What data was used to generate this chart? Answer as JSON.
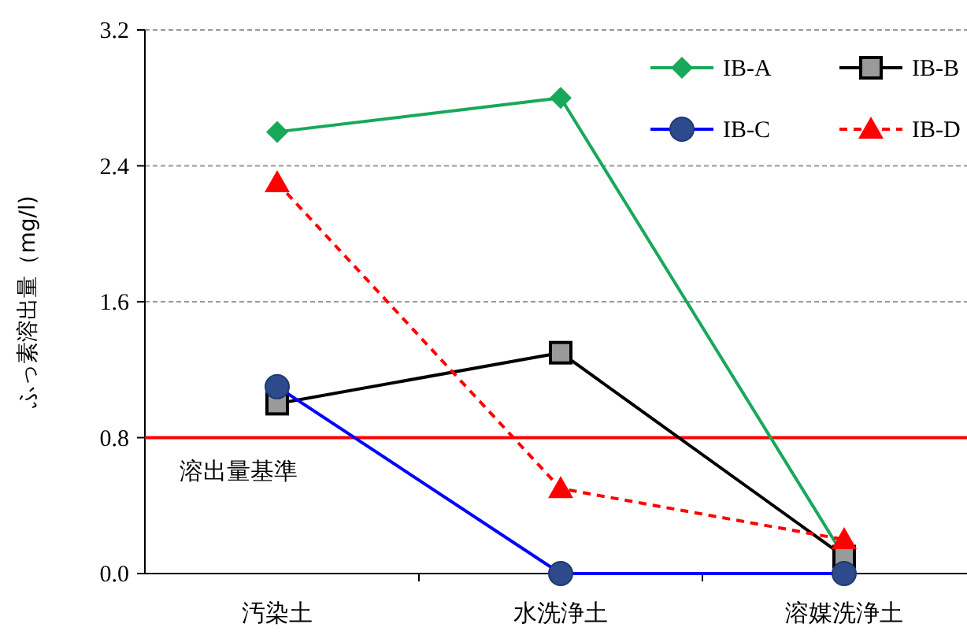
{
  "chart_data": {
    "type": "line",
    "ylabel": "ふっ素溶出量（mg/l)",
    "categories": [
      "汚染土",
      "水洗浄土",
      "溶媒洗浄土"
    ],
    "ylim": [
      0,
      3.2
    ],
    "yticks": [
      {
        "value": 0,
        "label": "0.0"
      },
      {
        "value": 0.8,
        "label": "0.8"
      },
      {
        "value": 1.6,
        "label": "1.6"
      },
      {
        "value": 2.4,
        "label": "2.4"
      },
      {
        "value": 3.2,
        "label": "3.2"
      }
    ],
    "grid": "y",
    "legend": "top right",
    "series": [
      {
        "name": "IB-A",
        "color": "#19a85a",
        "marker": "diamond",
        "line_style": "solid",
        "values": [
          2.6,
          2.8,
          0.1
        ]
      },
      {
        "name": "IB-B",
        "color": "#000000",
        "marker": "square",
        "line_style": "solid",
        "values": [
          1.0,
          1.3,
          0.1
        ]
      },
      {
        "name": "IB-C",
        "color": "#0000ff",
        "marker": "circle",
        "line_style": "solid",
        "values": [
          1.1,
          0,
          0
        ]
      },
      {
        "name": "IB-D",
        "color": "#ff0000",
        "marker": "triangle",
        "line_style": "dashed",
        "values": [
          2.3,
          0.5,
          0.2
        ]
      }
    ],
    "ref_lines": [
      {
        "axis": "y",
        "value": 0.8,
        "label": "溶出量基準",
        "color": "#ff0000"
      }
    ]
  }
}
